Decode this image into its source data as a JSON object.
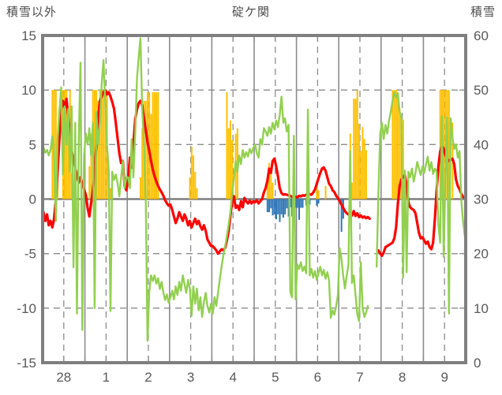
{
  "header": {
    "left_axis_title": "積雪以外",
    "title": "碇ケ関",
    "right_axis_title": "積雪"
  },
  "colors": {
    "red_line": "#FF0000",
    "green_line": "#92D050",
    "orange_bar": "#FFC000",
    "blue_bar": "#2E75B6",
    "grid": "#8C8C8C",
    "zero_line": "#7F7F7F",
    "frame": "#7F7F7F",
    "tick_text": "#595959",
    "header_text": "#4d4d4d"
  },
  "chart_data": {
    "type": "line+bar",
    "title": "碇ケ関",
    "x_unit": "hour",
    "hours_per_day": 24,
    "days": 10,
    "day_labels": [
      "28",
      "1",
      "2",
      "3",
      "4",
      "5",
      "6",
      "7",
      "8",
      "9"
    ],
    "left_axis": {
      "title": "積雪以外",
      "min": -15,
      "max": 15,
      "ticks": [
        15,
        10,
        5,
        0,
        -5,
        -10,
        -15
      ]
    },
    "right_axis": {
      "title": "積雪",
      "min": 0,
      "max": 60,
      "ticks": [
        60,
        50,
        40,
        30,
        20,
        10,
        0
      ]
    },
    "grid": {
      "h_dashed_left_values": [
        10,
        5,
        -5,
        -10
      ],
      "v_solid_every_hours": 24,
      "v_dashed_at_noon": true
    },
    "series": [
      {
        "name": "red_line",
        "type": "line",
        "axis": "left",
        "color": "#FF0000",
        "values": [
          -1.2,
          -2.0,
          -1.4,
          -2.4,
          -2.0,
          -2.6,
          -1.8,
          0.0,
          2.5,
          5.5,
          8.2,
          9.0,
          8.4,
          9.2,
          7.6,
          5.8,
          4.4,
          3.6,
          2.8,
          2.2,
          1.5,
          2.0,
          1.4,
          0.9,
          0.4,
          -0.8,
          -1.6,
          -0.4,
          0.8,
          2.5,
          5.0,
          7.5,
          9.0,
          9.4,
          9.8,
          10.0,
          9.6,
          9.8,
          9.4,
          8.9,
          8.3,
          7.0,
          5.6,
          4.2,
          3.3,
          3.5,
          1.2,
          0.8,
          1.8,
          3.8,
          2.9,
          5.0,
          7.3,
          8.2,
          8.8,
          9.0,
          8.6,
          7.4,
          6.3,
          5.2,
          4.4,
          3.5,
          2.7,
          2.1,
          1.6,
          1.2,
          0.9,
          0.6,
          0.3,
          -0.1,
          -0.4,
          -0.6,
          -0.5,
          -1.0,
          -1.6,
          -2.2,
          -1.8,
          -1.2,
          -1.6,
          -2.0,
          -1.4,
          -1.8,
          -2.4,
          -2.0,
          -2.6,
          -2.2,
          -1.8,
          -2.3,
          -2.0,
          -2.5,
          -2.8,
          -2.4,
          -2.9,
          -3.7,
          -4.0,
          -4.3,
          -4.3,
          -4.5,
          -4.7,
          -5.0,
          -4.8,
          -4.6,
          -4.7,
          -4.5,
          -3.8,
          -3.0,
          -1.5,
          -0.3,
          0.25,
          -0.8,
          -0.6,
          -1.0,
          -0.2,
          -0.75,
          0.1,
          -0.2,
          -0.4,
          -0.15,
          -0.4,
          -0.2,
          -0.3,
          -0.1,
          -0.4,
          -0.2,
          0.0,
          0.6,
          1.0,
          1.7,
          2.8,
          2.4,
          3.5,
          3.7,
          3.0,
          2.1,
          1.0,
          0.55,
          0.4,
          0.45,
          0.4,
          0.35,
          0.3,
          0.2,
          0.25,
          0.2,
          0.15,
          0.3,
          0.25,
          0.35,
          0.3,
          0.4,
          0.35,
          0.45,
          0.4,
          0.6,
          0.9,
          1.4,
          1.9,
          2.4,
          2.8,
          2.9,
          2.6,
          2.0,
          1.4,
          1.2,
          0.8,
          0.65,
          0.3,
          0.1,
          -0.2,
          -0.5,
          -0.8,
          -1.1,
          -1.3,
          -1.4,
          -1.2,
          -1.5,
          -1.1,
          -1.55,
          -1.3,
          -1.65,
          -1.5,
          -1.7,
          -1.6,
          -1.75,
          -1.65,
          -1.8,
          null,
          null,
          null,
          null,
          -4.7,
          -5.0,
          -5.2,
          -4.9,
          -4.4,
          -4.3,
          -4.2,
          -4.1,
          -4.0,
          -3.6,
          -2.6,
          -0.5,
          1.2,
          1.8,
          2.0,
          2.2,
          1.2,
          -0.3,
          -0.75,
          -0.9,
          -1.0,
          -1.3,
          -2.2,
          -3.1,
          -3.6,
          -3.5,
          -3.8,
          -4.1,
          -3.9,
          -4.4,
          -4.6,
          -4.0,
          -1.9,
          0.7,
          3.0,
          4.3,
          4.9,
          4.6,
          4.0,
          3.7,
          3.5,
          3.6,
          3.7,
          3.2,
          1.8,
          1.2,
          0.9,
          0.5,
          0.2,
          0.1
        ]
      },
      {
        "name": "green_line",
        "type": "line",
        "axis": "right",
        "color": "#92D050",
        "values": [
          39.5,
          38.5,
          39,
          38,
          39,
          41.5,
          38.5,
          26,
          41,
          46,
          50.5,
          34.5,
          47,
          40,
          46.5,
          35,
          47,
          17.5,
          44,
          9,
          41,
          55,
          6,
          38,
          42,
          40,
          43,
          38,
          44,
          10,
          46,
          40,
          44,
          51,
          55.5,
          48,
          40,
          35,
          9.5,
          35,
          33.5,
          34.5,
          33,
          30.5,
          34,
          37,
          32,
          34,
          34,
          32,
          41,
          34,
          42,
          52,
          56,
          59.5,
          46.5,
          40.5,
          29.5,
          4,
          13,
          16,
          15,
          16,
          14.5,
          15.5,
          13.5,
          14.8,
          12.8,
          11.5,
          12.5,
          11,
          12,
          13.2,
          11.6,
          14,
          12.4,
          14.8,
          13.2,
          16,
          14.4,
          12.8,
          15.2,
          13.6,
          8.6,
          14,
          10.8,
          13.6,
          9.6,
          12,
          8.4,
          11.2,
          12.8,
          10.4,
          9.2,
          10.8,
          9,
          12,
          10.4,
          12.8,
          15.2,
          17.6,
          19.6,
          21.2,
          23.2,
          25.2,
          27.6,
          31,
          34,
          37,
          35,
          38,
          36.4,
          39,
          37.6,
          38.6,
          37.8,
          39.2,
          38.4,
          39.4,
          40,
          38.4,
          37.6,
          41,
          40,
          43,
          42.4,
          41.6,
          43.2,
          42,
          44,
          42.8,
          44.4,
          43.2,
          45.4,
          48.8,
          44,
          44.8,
          42.4,
          43.6,
          13,
          12,
          41.6,
          11.6,
          18,
          17.2,
          18.4,
          16.8,
          17.6,
          16.4,
          46.4,
          16,
          17.2,
          15.6,
          16.8,
          15.2,
          16.4,
          17.6,
          16,
          17,
          15.4,
          16.6,
          15,
          8.2,
          9.6,
          8.8,
          10.4,
          12.4,
          21,
          19,
          16,
          13.6,
          16,
          18,
          38.8,
          14.6,
          16,
          12.4,
          9,
          7.6,
          18.4,
          10,
          8.4,
          9.2,
          10.4,
          null,
          null,
          null,
          null,
          17.6,
          31,
          42,
          44,
          41,
          43.6,
          42,
          44.4,
          46,
          48,
          49.6,
          48.6,
          49.4,
          46,
          45,
          15.6,
          35.2,
          16.6,
          35,
          34,
          35.6,
          33.2,
          34.8,
          36.8,
          35.6,
          34.4,
          36,
          34.8,
          36.4,
          37.8,
          35.2,
          36.8,
          34.6,
          35.6,
          35,
          25.4,
          22,
          45.2,
          19.4,
          34,
          45,
          9,
          44.8,
          41.2,
          39.2,
          40,
          37.6,
          38.8,
          29.8,
          26,
          23.2
        ]
      },
      {
        "name": "orange_bars",
        "type": "bar",
        "axis": "left",
        "color": "#FFC000",
        "points": [
          [
            5,
            10
          ],
          [
            6,
            10
          ],
          [
            7,
            10
          ],
          [
            8,
            4.6
          ],
          [
            11,
            10
          ],
          [
            12,
            10
          ],
          [
            13,
            10
          ],
          [
            14,
            8
          ],
          [
            15,
            10
          ],
          [
            16,
            2.4
          ],
          [
            17,
            0.8
          ],
          [
            26,
            3
          ],
          [
            27,
            6
          ],
          [
            28,
            10
          ],
          [
            29,
            10
          ],
          [
            30,
            10
          ],
          [
            31,
            9
          ],
          [
            32,
            10
          ],
          [
            33,
            10
          ],
          [
            34,
            10
          ],
          [
            35,
            8.7
          ],
          [
            36,
            10
          ],
          [
            37,
            2.4
          ],
          [
            38,
            1
          ],
          [
            55,
            2
          ],
          [
            56,
            6.5
          ],
          [
            57,
            9
          ],
          [
            58,
            9
          ],
          [
            59,
            9.8
          ],
          [
            60,
            9.8
          ],
          [
            61,
            7.8
          ],
          [
            62,
            9.8
          ],
          [
            63,
            9.8
          ],
          [
            64,
            9.8
          ],
          [
            65,
            9.8
          ],
          [
            83,
            2
          ],
          [
            84,
            4.8
          ],
          [
            85,
            4
          ],
          [
            86,
            2.5
          ],
          [
            87,
            1
          ],
          [
            104,
            9.8
          ],
          [
            105,
            6.5
          ],
          [
            106,
            7.2
          ],
          [
            107,
            5.4
          ],
          [
            109,
            6
          ],
          [
            110,
            6.5
          ],
          [
            127,
            1.5
          ],
          [
            128,
            3.3
          ],
          [
            129,
            2.5
          ],
          [
            130,
            1.5
          ],
          [
            155,
            1.2
          ],
          [
            156,
            0.8
          ],
          [
            160,
            1.2
          ],
          [
            174,
            6
          ],
          [
            175,
            1.5
          ],
          [
            176,
            9.2
          ],
          [
            177,
            9.2
          ],
          [
            178,
            10
          ],
          [
            179,
            6.9
          ],
          [
            180,
            4.4
          ],
          [
            181,
            6.6
          ],
          [
            182,
            5.5
          ],
          [
            183,
            4.5
          ],
          [
            198,
            10
          ],
          [
            199,
            10
          ],
          [
            200,
            10
          ],
          [
            201,
            9.6
          ],
          [
            202,
            8.3
          ],
          [
            203,
            7.5
          ],
          [
            204,
            7.3
          ],
          [
            205,
            2.4
          ],
          [
            206,
            1.5
          ],
          [
            225,
            10
          ],
          [
            226,
            10
          ],
          [
            227,
            10
          ],
          [
            228,
            10
          ],
          [
            229,
            10
          ],
          [
            230,
            10
          ],
          [
            232,
            7
          ]
        ]
      },
      {
        "name": "blue_bars",
        "type": "bar",
        "axis": "left",
        "color": "#2E75B6",
        "points": [
          [
            127,
            -1.2
          ],
          [
            128,
            -1.2
          ],
          [
            129,
            -0.85
          ],
          [
            130,
            -1.5
          ],
          [
            131,
            -1.4
          ],
          [
            132,
            -1.85
          ],
          [
            133,
            -1.4
          ],
          [
            134,
            -2.1
          ],
          [
            135,
            -1.4
          ],
          [
            136,
            -1.7
          ],
          [
            137,
            -1.4
          ],
          [
            138,
            -0.85
          ],
          [
            139,
            -1.6
          ],
          [
            140,
            -0.75
          ],
          [
            141,
            -1.6
          ],
          [
            142,
            -1.7
          ],
          [
            143,
            -0.8
          ],
          [
            144,
            -0.8
          ],
          [
            145,
            -1.9
          ],
          [
            146,
            -0.8
          ],
          [
            147,
            -0.8
          ],
          [
            149,
            -0.6
          ],
          [
            150,
            -0.4
          ],
          [
            151,
            -0.5
          ],
          [
            155,
            -0.6
          ],
          [
            156,
            -0.4
          ],
          [
            169,
            -3.0
          ],
          [
            170,
            -1.8
          ]
        ]
      }
    ]
  }
}
